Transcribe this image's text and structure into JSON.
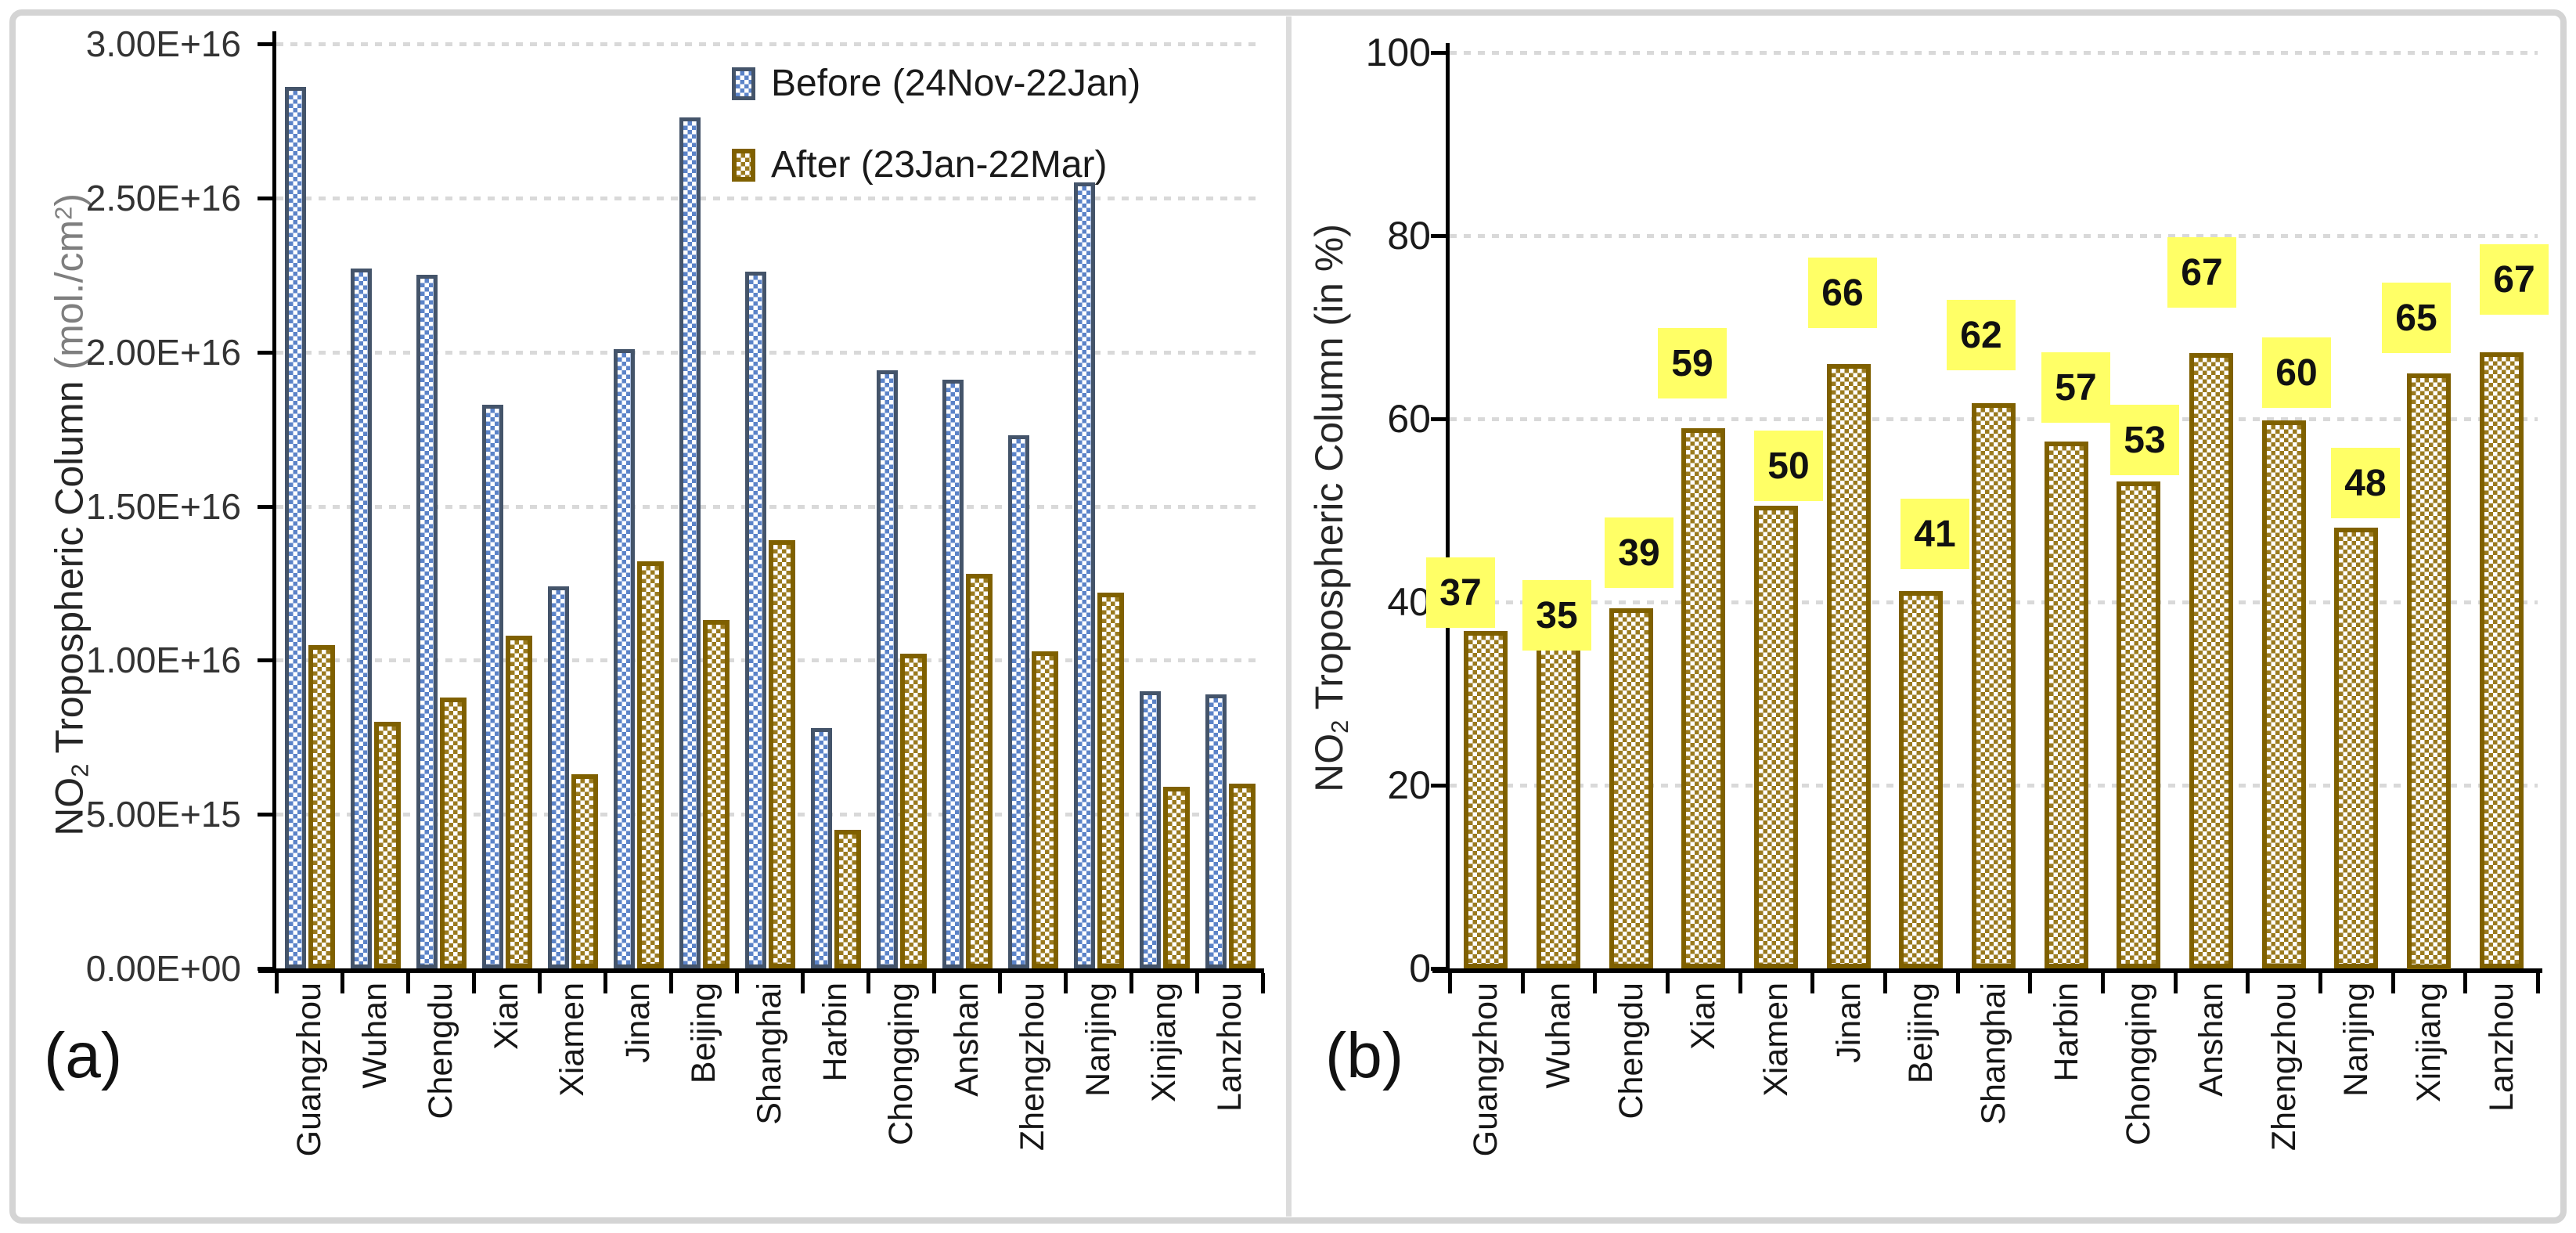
{
  "figure": {
    "panels": [
      {
        "id": "a",
        "label": "(a)"
      },
      {
        "id": "b",
        "label": "(b)"
      }
    ]
  },
  "axis_titles": {
    "a": {
      "gas": "NO",
      "gas_sub": "2",
      "main": " Tropospheric Column ",
      "unit_open": "(mol./cm",
      "unit_sup": "2",
      "unit_close": ")"
    },
    "b": {
      "gas": "NO",
      "gas_sub": "2",
      "main": " Tropospheric Column (in %)"
    }
  },
  "y_ticks": {
    "a": [
      "3.00E+16",
      "2.50E+16",
      "2.00E+16",
      "1.50E+16",
      "1.00E+16",
      "5.00E+15",
      "0.00E+00"
    ],
    "b": [
      "100",
      "80",
      "60",
      "40",
      "20",
      "0"
    ]
  },
  "legend": {
    "items": [
      {
        "series": "before",
        "label": "Before (24Nov-22Jan)"
      },
      {
        "series": "after",
        "label": "After (23Jan-22Mar)"
      }
    ]
  },
  "colors": {
    "before_fill": "#5b83c8",
    "before_border": "#44546a",
    "after_fill": "#9a7a1e",
    "after_border": "#7f6000",
    "gridline": "#d9d9d9",
    "axis": "#000000",
    "label_highlight": "#ffff66",
    "frame": "#d4d4d4"
  },
  "chart_data": [
    {
      "type": "bar",
      "panel": "(a)",
      "title": "",
      "xlabel": "",
      "ylabel": "NO2 Tropospheric Column (mol./cm2)",
      "ylim": [
        0,
        3e+16
      ],
      "ytick_step": 5000000000000000.0,
      "grid": "horizontal-dotted",
      "legend_position": "top-right-inside",
      "categories": [
        "Guangzhou",
        "Wuhan",
        "Chengdu",
        "Xian",
        "Xiamen",
        "Jinan",
        "Beijing",
        "Shanghai",
        "Harbin",
        "Chongqing",
        "Anshan",
        "Zhengzhou",
        "Nanjing",
        "Xinjiang",
        "Lanzhou"
      ],
      "series": [
        {
          "name": "Before (24Nov-22Jan)",
          "values": [
            2.86e+16,
            2.27e+16,
            2.25e+16,
            1.83e+16,
            1.24e+16,
            2.01e+16,
            2.76e+16,
            2.26e+16,
            7800000000000000.0,
            1.94e+16,
            1.91e+16,
            1.73e+16,
            2.55e+16,
            9000000000000000.0,
            8900000000000000.0
          ]
        },
        {
          "name": "After (23Jan-22Mar)",
          "values": [
            1.05e+16,
            8000000000000000.0,
            8800000000000000.0,
            1.08e+16,
            6300000000000000.0,
            1.32e+16,
            1.13e+16,
            1.39e+16,
            4500000000000000.0,
            1.02e+16,
            1.28e+16,
            1.03e+16,
            1.22e+16,
            5900000000000000.0,
            6000000000000000.0
          ]
        }
      ]
    },
    {
      "type": "bar",
      "panel": "(b)",
      "title": "",
      "xlabel": "",
      "ylabel": "NO2 Tropospheric Column (in %)",
      "ylim": [
        0,
        100
      ],
      "ytick_step": 20,
      "grid": "horizontal-dotted",
      "legend_position": "none",
      "categories": [
        "Guangzhou",
        "Wuhan",
        "Chengdu",
        "Xian",
        "Xiamen",
        "Jinan",
        "Beijing",
        "Shanghai",
        "Harbin",
        "Chongqing",
        "Anshan",
        "Zhengzhou",
        "Nanjing",
        "Xinjiang",
        "Lanzhou"
      ],
      "values": [
        36.8,
        35.2,
        39.3,
        59.0,
        50.5,
        66.0,
        41.2,
        61.7,
        57.5,
        53.2,
        67.2,
        59.8,
        48.1,
        65.0,
        67.3
      ],
      "data_labels": [
        "37",
        "35",
        "39",
        "59",
        "50",
        "66",
        "41",
        "62",
        "57",
        "53",
        "67",
        "60",
        "48",
        "65",
        "67"
      ],
      "data_label_style": "black-bold-on-yellow-highlight"
    }
  ]
}
